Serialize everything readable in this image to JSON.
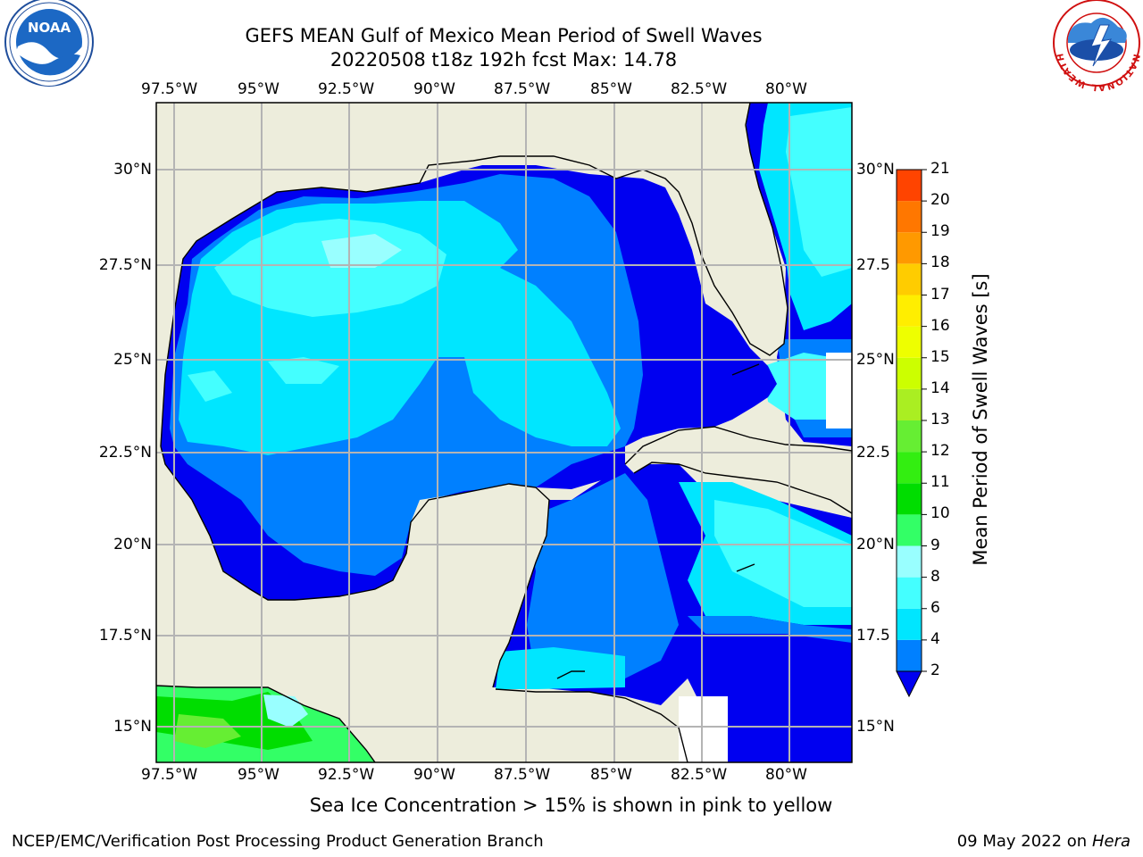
{
  "header": {
    "title_line1": "GEFS MEAN Gulf of Mexico Mean Period of Swell Waves",
    "title_line2": "20220508 t18z 192h fcst   Max: 14.78"
  },
  "logos": {
    "left": {
      "text": "NOAA",
      "ring_text": "NATIONAL OCEANIC AND ATMOSPHERIC ADMINISTRATION · U.S. DEPARTMENT OF COMMERCE"
    },
    "right": {
      "ring_text": "NATIONAL WEATHER SERVICE"
    }
  },
  "map": {
    "lon_labels": [
      "97.5°W",
      "95°W",
      "92.5°W",
      "90°W",
      "87.5°W",
      "85°W",
      "82.5°W",
      "80°W"
    ],
    "lat_labels_left": [
      "30°N",
      "27.5°N",
      "25°N",
      "22.5°N",
      "20°N",
      "17.5°N",
      "15°N"
    ],
    "lat_labels_right": [
      "30°N",
      "27.5",
      "25°N",
      "22.5",
      "20°N",
      "17.5",
      "15°N"
    ],
    "colors": {
      "land": "#ededdc",
      "c2": "#0000f0",
      "c4": "#0080ff",
      "c6": "#00e6ff",
      "c8": "#44ffff",
      "c9": "#99ffff",
      "c10": "#33ff66",
      "c11": "#00dd00",
      "c12": "#66ee33",
      "grid": "#b4b4b4"
    }
  },
  "colorbar": {
    "label": "Mean Period of Swell Waves [s]",
    "ticks": [
      "2",
      "4",
      "6",
      "8",
      "9",
      "10",
      "11",
      "12",
      "13",
      "14",
      "15",
      "16",
      "17",
      "18",
      "19",
      "20",
      "21"
    ],
    "colors": [
      "#0080ff",
      "#00e6ff",
      "#44ffff",
      "#99ffff",
      "#33ff66",
      "#00dd00",
      "#33ee11",
      "#66ee33",
      "#aaee22",
      "#ccff00",
      "#eeff00",
      "#ffee00",
      "#ffcc00",
      "#ff9900",
      "#ff7700",
      "#ff4400",
      "#ff2200",
      "#ff0000"
    ],
    "extend_color": "#0000f0"
  },
  "footer": {
    "note": "Sea Ice Concentration > 15% is shown in pink to yellow",
    "credit": "NCEP/EMC/Verification Post Processing Product Generation Branch",
    "date": "09 May 2022 on",
    "machine": "Hera"
  }
}
